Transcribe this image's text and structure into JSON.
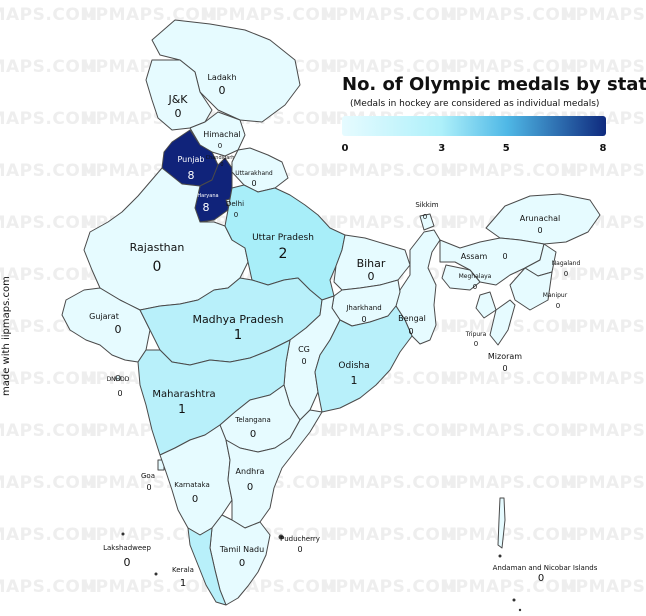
{
  "watermark": "IIPMAPS.COM",
  "title": "No. of Olympic medals by state",
  "subtitle": "(Medals in hockey are considered as individual medals)",
  "credit": "made with iipmaps.com",
  "legend": {
    "ticks": [
      "0",
      "3",
      "5",
      "8"
    ],
    "tick_values": [
      0,
      3,
      5,
      8
    ],
    "min": 0,
    "max": 8,
    "colors": [
      "#e6fbff",
      "#bff3fb",
      "#7fe3f3",
      "#2d6fc0",
      "#10237a"
    ]
  },
  "states": [
    {
      "name": "J&K",
      "value": "0"
    },
    {
      "name": "Ladakh",
      "value": "0"
    },
    {
      "name": "Himachal",
      "value": "0"
    },
    {
      "name": "Chandigarh",
      "value": "0"
    },
    {
      "name": "Punjab",
      "value": "8"
    },
    {
      "name": "Haryana",
      "value": "8"
    },
    {
      "name": "Uttarakhand",
      "value": "0"
    },
    {
      "name": "Delhi",
      "value": "0"
    },
    {
      "name": "Rajasthan",
      "value": "0"
    },
    {
      "name": "Uttar Pradesh",
      "value": "2"
    },
    {
      "name": "Bihar",
      "value": "0"
    },
    {
      "name": "Sikkim",
      "value": "0"
    },
    {
      "name": "Arunachal",
      "value": "0"
    },
    {
      "name": "Assam",
      "value": "0"
    },
    {
      "name": "Meghalaya",
      "value": "0"
    },
    {
      "name": "Nagaland",
      "value": "0"
    },
    {
      "name": "Manipur",
      "value": "0"
    },
    {
      "name": "Tripura",
      "value": "0"
    },
    {
      "name": "Mizoram",
      "value": "0"
    },
    {
      "name": "Jharkhand",
      "value": "0"
    },
    {
      "name": "Bengal",
      "value": "0"
    },
    {
      "name": "Gujarat",
      "value": "0"
    },
    {
      "name": "Madhya Pradesh",
      "value": "1"
    },
    {
      "name": "CG",
      "value": "0"
    },
    {
      "name": "Odisha",
      "value": "1"
    },
    {
      "name": "DNHDD",
      "value": "0"
    },
    {
      "name": "Maharashtra",
      "value": "1"
    },
    {
      "name": "Telangana",
      "value": "0"
    },
    {
      "name": "Goa",
      "value": "0"
    },
    {
      "name": "Karnataka",
      "value": "0"
    },
    {
      "name": "Andhra",
      "value": "0"
    },
    {
      "name": "Lakshadweep",
      "value": "0"
    },
    {
      "name": "Tamil Nadu",
      "value": "0"
    },
    {
      "name": "Puducherry",
      "value": "0"
    },
    {
      "name": "Kerala",
      "value": "1"
    },
    {
      "name": "Andaman and Nicobar Islands",
      "value": "0"
    }
  ]
}
